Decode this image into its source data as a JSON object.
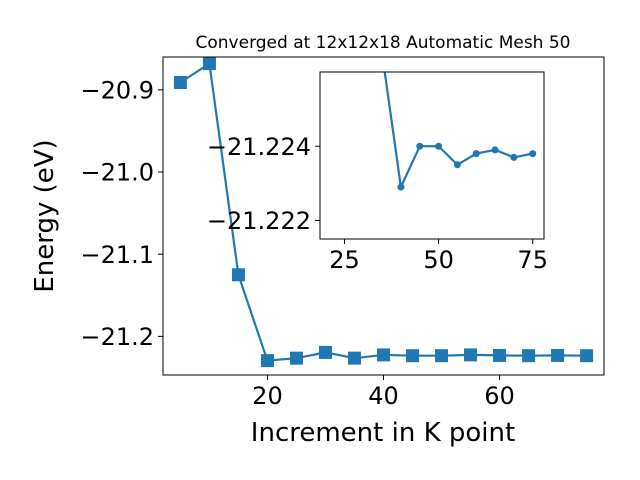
{
  "chart_data": [
    {
      "type": "line",
      "title": "Converged at 12x12x18 Automatic Mesh 50",
      "xlabel": "Increment in K point",
      "ylabel": "Energy (eV)",
      "xlim": [
        2,
        78
      ],
      "ylim": [
        -21.247,
        -20.86
      ],
      "xticks": [
        20,
        40,
        60
      ],
      "xtick_labels": [
        "20",
        "40",
        "60"
      ],
      "yticks": [
        -20.9,
        -21.0,
        -21.1,
        -21.2
      ],
      "ytick_labels": [
        "−20.9",
        "−21.0",
        "−21.1",
        "−21.2"
      ],
      "grid": false,
      "legend": "none",
      "marker": "square",
      "color": "#1f77b4",
      "x": [
        5,
        10,
        15,
        20,
        25,
        30,
        35,
        40,
        45,
        50,
        55,
        60,
        65,
        70,
        75
      ],
      "y": [
        -20.891,
        -20.868,
        -21.125,
        -21.2295,
        -21.2265,
        -21.2195,
        -21.2265,
        -21.2225,
        -21.2235,
        -21.2235,
        -21.2225,
        -21.2232,
        -21.2235,
        -21.2232,
        -21.2235
      ]
    },
    {
      "type": "line",
      "title": "",
      "xlabel": "",
      "ylabel": "",
      "xlim": [
        18.5,
        78
      ],
      "ylim": [
        -21.2215,
        -21.226
      ],
      "xticks": [
        25,
        50,
        75
      ],
      "xtick_labels": [
        "25",
        "50",
        "75"
      ],
      "yticks": [
        -21.224,
        -21.222
      ],
      "ytick_labels": [
        "−21.224",
        "−21.222"
      ],
      "grid": false,
      "legend": "none",
      "marker": "circle",
      "color": "#1f77b4",
      "x": [
        35,
        40,
        45,
        50,
        55,
        60,
        65,
        70,
        75
      ],
      "y": [
        -21.2265,
        -21.2229,
        -21.224,
        -21.224,
        -21.2235,
        -21.2238,
        -21.2239,
        -21.2237,
        -21.2238
      ]
    }
  ]
}
